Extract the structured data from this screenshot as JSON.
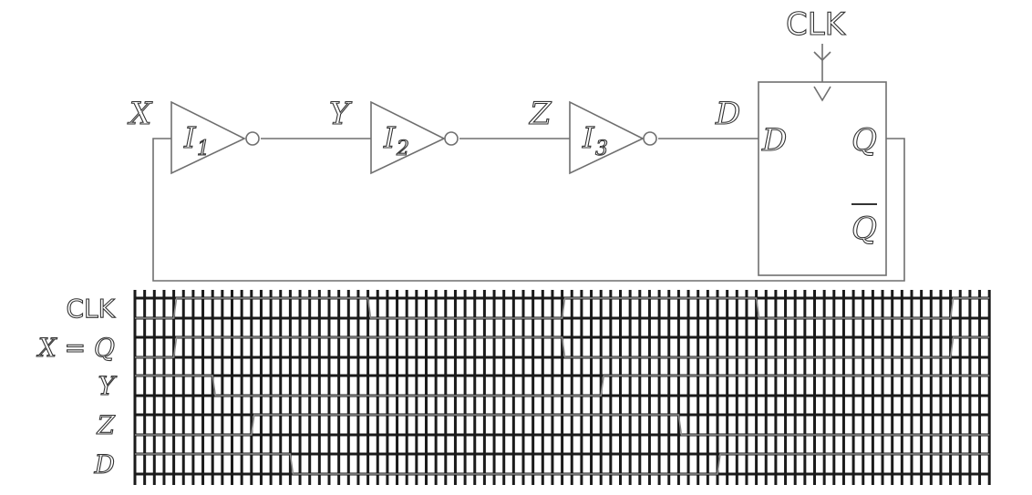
{
  "circuit": {
    "node_labels": {
      "x": "X",
      "y": "Y",
      "z": "Z",
      "d": "D"
    },
    "gates": [
      {
        "letter": "I",
        "sub": "1"
      },
      {
        "letter": "I",
        "sub": "2"
      },
      {
        "letter": "I",
        "sub": "3"
      }
    ],
    "flipflop": {
      "clk": "CLK",
      "d": "D",
      "q": "Q",
      "qbar": "Q"
    }
  },
  "timing": {
    "signals": [
      {
        "name": "CLK",
        "levels": [
          0,
          1,
          1,
          1,
          1,
          1,
          0,
          0,
          0,
          0,
          0,
          1,
          1,
          1,
          1,
          1,
          0,
          0,
          0,
          0,
          0,
          1
        ]
      },
      {
        "name": "X = Q",
        "levels": [
          0,
          1,
          1,
          1,
          1,
          1,
          1,
          1,
          1,
          1,
          1,
          0,
          0,
          0,
          0,
          0,
          0,
          0,
          0,
          0,
          0,
          1
        ]
      },
      {
        "name": "Y",
        "levels": [
          1,
          1,
          0,
          0,
          0,
          0,
          0,
          0,
          0,
          0,
          0,
          0,
          1,
          1,
          1,
          1,
          1,
          1,
          1,
          1,
          1,
          1
        ]
      },
      {
        "name": "Z",
        "levels": [
          0,
          0,
          0,
          1,
          1,
          1,
          1,
          1,
          1,
          1,
          1,
          1,
          1,
          1,
          0,
          0,
          0,
          0,
          0,
          0,
          0,
          0
        ]
      },
      {
        "name": "D",
        "levels": [
          1,
          1,
          1,
          1,
          0,
          0,
          0,
          0,
          0,
          0,
          0,
          0,
          0,
          0,
          0,
          1,
          1,
          1,
          1,
          1,
          1,
          1
        ]
      }
    ],
    "high_ranges": [
      [
        [
          1,
          6
        ],
        [
          11,
          16
        ],
        [
          21,
          22
        ]
      ],
      [
        [
          1,
          11
        ],
        [
          21,
          22
        ]
      ],
      [
        [
          0,
          2
        ],
        [
          12,
          22
        ]
      ],
      [
        [
          3,
          14
        ]
      ],
      [
        [
          0,
          4
        ],
        [
          15,
          22
        ]
      ]
    ]
  }
}
